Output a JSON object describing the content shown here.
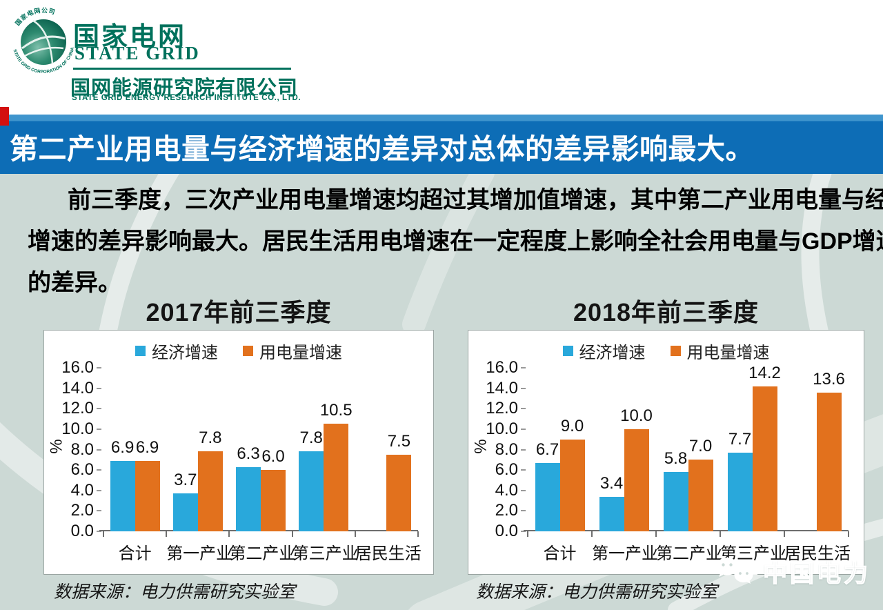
{
  "logo": {
    "icon": "state-grid-globe-icon",
    "ring_text": "国家电网公司 STATE GRID CORPORATION OF CHINA",
    "name_cn": "国家电网",
    "name_en": "STATE GRID",
    "institute_cn": "国网能源研究院有限公司",
    "institute_en": "STATE GRID ENERGY RESEARCH INSTITUTE CO., LTD."
  },
  "banner": {
    "title": "第二产业用电量与经济增速的差异对总体的差异影响最大。"
  },
  "body": {
    "lines": [
      "前三季度，三次产业用电量增速均超过其增加值增速，其中第二产业用电量与经济",
      "增速的差异影响最大。居民生活用电增速在一定程度上影响全社会用电量与GDP增速",
      "的差异。"
    ]
  },
  "colors": {
    "banner_blue": "#0d6db6",
    "series_blue": "#29a8db",
    "series_orange": "#e2711d",
    "logo_green": "#00715c",
    "background": "#ccd9d5",
    "accent_red": "#d30f0f"
  },
  "chart_data": [
    {
      "type": "bar",
      "title": "2017年前三季度",
      "categories": [
        "合计",
        "第一产业",
        "第二产业",
        "第三产业",
        "居民生活"
      ],
      "series": [
        {
          "name": "经济增速",
          "color": "#29a8db",
          "values": [
            6.9,
            3.7,
            6.3,
            7.8,
            null
          ]
        },
        {
          "name": "用电量增速",
          "color": "#e2711d",
          "values": [
            6.9,
            7.8,
            6.0,
            10.5,
            7.5
          ]
        }
      ],
      "xlabel": "",
      "ylabel": "%",
      "ylim": [
        0,
        16
      ],
      "ytick_step": 2,
      "legend_position": "top",
      "grid": false,
      "source": "数据来源：电力供需研究实验室"
    },
    {
      "type": "bar",
      "title": "2018年前三季度",
      "categories": [
        "合计",
        "第一产业",
        "第二产业",
        "第三产业",
        "居民生活"
      ],
      "series": [
        {
          "name": "经济增速",
          "color": "#29a8db",
          "values": [
            6.7,
            3.4,
            5.8,
            7.7,
            null
          ]
        },
        {
          "name": "用电量增速",
          "color": "#e2711d",
          "values": [
            9.0,
            10.0,
            7.0,
            14.2,
            13.6
          ]
        }
      ],
      "xlabel": "",
      "ylabel": "%",
      "ylim": [
        0,
        16
      ],
      "ytick_step": 2,
      "legend_position": "top",
      "grid": false,
      "source": "数据来源：电力供需研究实验室"
    }
  ],
  "watermark": {
    "icon": "wechat-icon",
    "label": "中国电力"
  }
}
